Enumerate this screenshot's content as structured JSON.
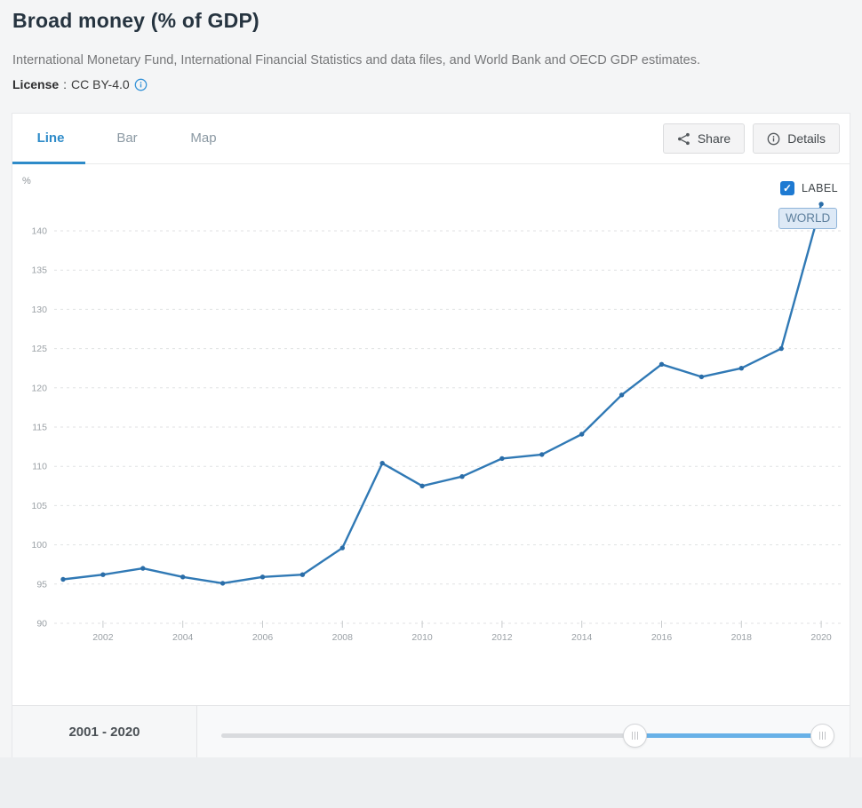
{
  "header": {
    "title": "Broad money (% of GDP)",
    "source": "International Monetary Fund, International Financial Statistics and data files, and World Bank and OECD GDP estimates.",
    "license_label": "License",
    "license_separator": ":",
    "license_value": "CC BY-4.0"
  },
  "tabs": [
    {
      "label": "Line",
      "active": true
    },
    {
      "label": "Bar",
      "active": false
    },
    {
      "label": "Map",
      "active": false
    }
  ],
  "toolbar": {
    "share_label": "Share",
    "details_label": "Details"
  },
  "chart": {
    "unit_label": "%",
    "label_checkbox": "LABEL",
    "series_label": "WORLD",
    "line_color": "#3079b5",
    "point_color": "#2a6da8",
    "accent_blue": "#2e8bc9"
  },
  "chart_data": {
    "type": "line",
    "title": "Broad money (% of GDP)",
    "ylabel": "%",
    "xlabel": "",
    "grid": "horizontal-dashed",
    "legend_position": "end-of-line-label",
    "end_label": "WORLD",
    "x": [
      2001,
      2002,
      2003,
      2004,
      2005,
      2006,
      2007,
      2008,
      2009,
      2010,
      2011,
      2012,
      2013,
      2014,
      2015,
      2016,
      2017,
      2018,
      2019,
      2020
    ],
    "series": [
      {
        "name": "WORLD",
        "values": [
          95.6,
          96.2,
          97.0,
          95.9,
          95.1,
          95.9,
          96.2,
          99.6,
          110.4,
          107.5,
          108.7,
          111.0,
          111.5,
          114.1,
          119.1,
          123.0,
          121.4,
          122.5,
          125.0,
          143.4
        ]
      }
    ],
    "ylim": [
      88,
      146
    ],
    "yticks": [
      90,
      95,
      100,
      105,
      110,
      115,
      120,
      125,
      130,
      135,
      140
    ],
    "xticks": [
      2002,
      2004,
      2006,
      2008,
      2010,
      2012,
      2014,
      2016,
      2018,
      2020
    ]
  },
  "range_slider": {
    "label": "2001 - 2020",
    "range_color": "#68b1e7"
  }
}
